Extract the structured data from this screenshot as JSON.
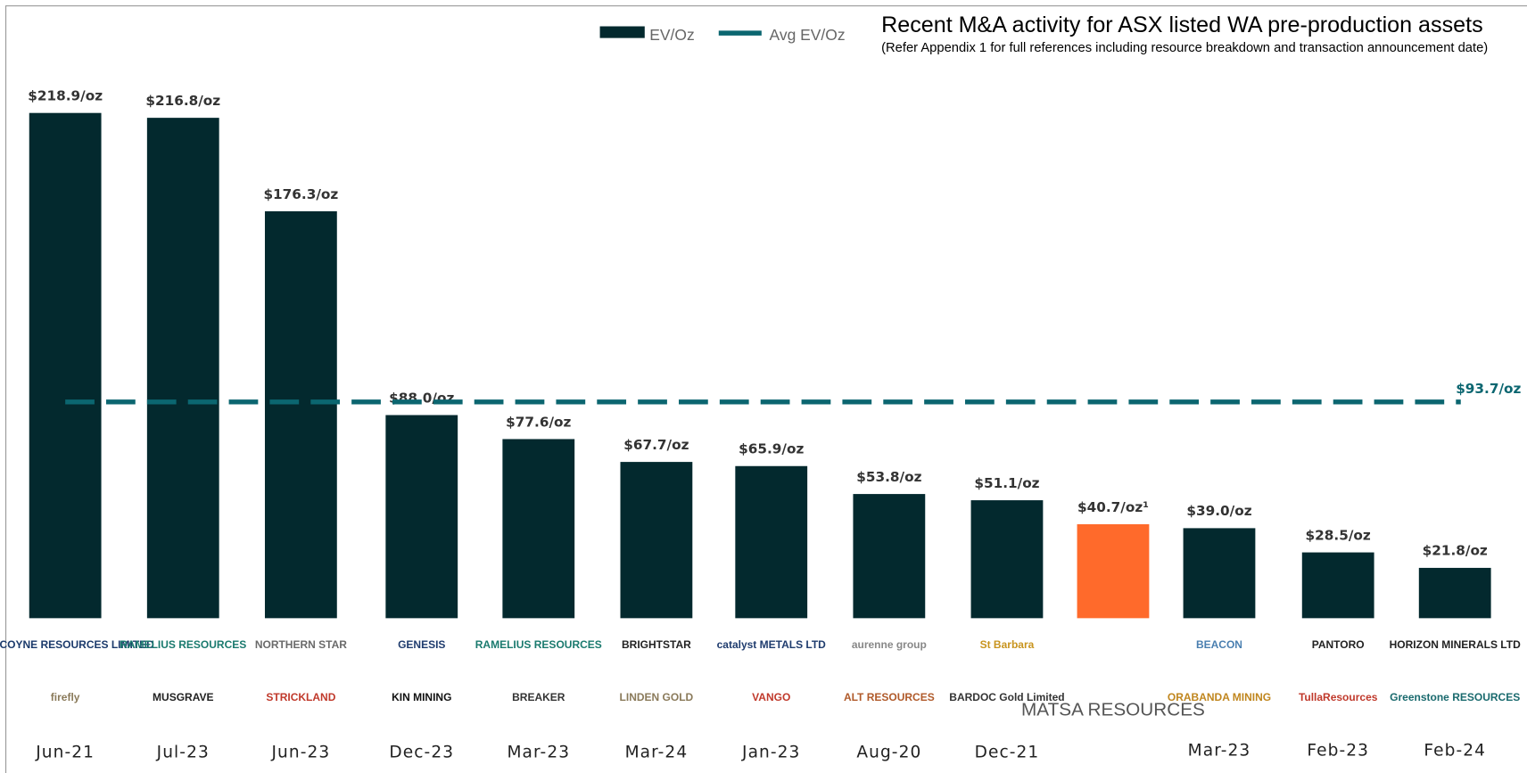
{
  "chart_data": {
    "type": "bar",
    "title": "Recent M&A activity for ASX listed WA pre-production assets",
    "subtitle": "(Refer Appendix 1 for full references including resource breakdown and transaction announcement date)",
    "categories": [
      "Jun-21",
      "Jul-23",
      "Jun-23",
      "Dec-23",
      "Mar-23",
      "Mar-24",
      "Jan-23",
      "Aug-20",
      "Dec-21",
      null,
      "Mar-23",
      "Feb-23",
      "Feb-24"
    ],
    "series": [
      {
        "name": "EV/Oz",
        "color": "#03292e",
        "values": [
          218.9,
          216.8,
          176.3,
          88.0,
          77.6,
          67.7,
          65.9,
          53.8,
          51.1,
          40.7,
          39.0,
          28.5,
          21.8
        ],
        "value_labels": [
          "$218.9/oz",
          "$216.8/oz",
          "$176.3/oz",
          "$88.0/oz",
          "$77.6/oz",
          "$67.7/oz",
          "$65.9/oz",
          "$53.8/oz",
          "$51.1/oz",
          "$40.7/oz¹",
          "$39.0/oz",
          "$28.5/oz",
          "$21.8/oz"
        ],
        "colors": [
          "#03292e",
          "#03292e",
          "#03292e",
          "#03292e",
          "#03292e",
          "#03292e",
          "#03292e",
          "#03292e",
          "#03292e",
          "#ff6a2b",
          "#03292e",
          "#03292e",
          "#03292e"
        ]
      }
    ],
    "average": {
      "name": "Avg EV/Oz",
      "color": "#0b6670",
      "value": 93.7,
      "value_label": "$93.7/oz"
    },
    "acquirers": [
      "GASCOYNE RESOURCES LIMITED",
      "RAMELIUS RESOURCES",
      "NORTHERN STAR",
      "GENESIS",
      "RAMELIUS RESOURCES",
      "BRIGHTSTAR",
      "catalyst METALS LTD",
      "aurenne group",
      "St Barbara",
      null,
      "BEACON",
      "PANTORO",
      "HORIZON MINERALS LTD"
    ],
    "targets": [
      "firefly",
      "MUSGRAVE",
      "STRICKLAND",
      "KIN MINING",
      "BREAKER",
      "LINDEN GOLD",
      "VANGO",
      "ALT RESOURCES",
      "BARDOC Gold Limited",
      "MATSA RESOURCES",
      "ORABANDA MINING",
      "TullaResources",
      "Greenstone RESOURCES"
    ]
  }
}
